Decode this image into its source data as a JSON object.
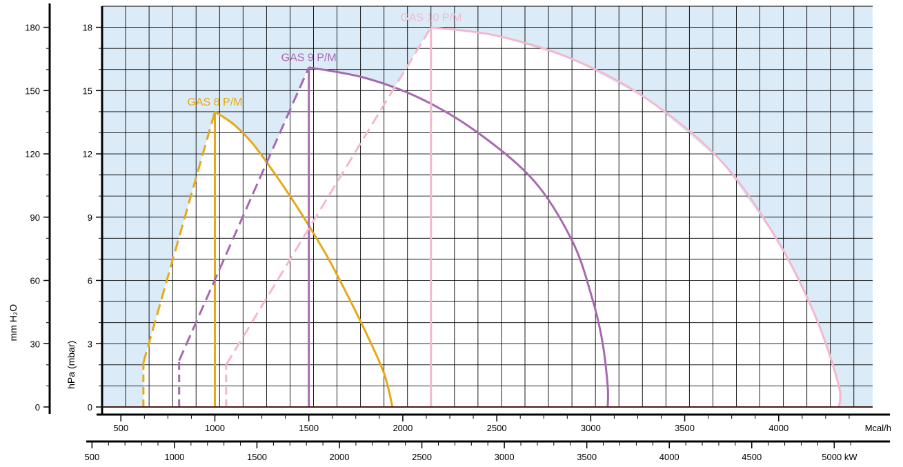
{
  "chart_data": {
    "type": "line",
    "x_axis_primary": {
      "label": "Mcal/h",
      "range": [
        400,
        4500
      ],
      "major_ticks": [
        500,
        1000,
        1500,
        2000,
        2500,
        3000,
        3500,
        4000
      ],
      "tick_labels": [
        "500",
        "1000",
        "1500",
        "2000",
        "2500",
        "3000",
        "3500",
        "4000"
      ]
    },
    "x_axis_secondary": {
      "label": "kW",
      "range": [
        465,
        5233
      ],
      "major_ticks": [
        500,
        1000,
        1500,
        2000,
        2500,
        3000,
        3500,
        4000,
        4500,
        5000
      ],
      "tick_labels": [
        "500",
        "1000",
        "1500",
        "2000",
        "2500",
        "3000",
        "3500",
        "4000",
        "4500",
        "5000 kW"
      ]
    },
    "y_axis_primary": {
      "label": "hPa (mbar)",
      "range": [
        0,
        19
      ],
      "major_ticks": [
        0,
        3,
        6,
        9,
        12,
        15,
        18
      ],
      "tick_labels": [
        "0",
        "3",
        "6",
        "9",
        "12",
        "15",
        "18"
      ]
    },
    "y_axis_secondary": {
      "label": "mm H₂O",
      "range": [
        0,
        190
      ],
      "major_ticks": [
        0,
        30,
        60,
        90,
        120,
        150,
        180
      ],
      "tick_labels": [
        "0",
        "30",
        "60",
        "90",
        "120",
        "150",
        "180"
      ]
    },
    "grid": true,
    "background_shading": "#dcebf8",
    "series": [
      {
        "name": "GAS 8 P/M",
        "color": "#e6a817",
        "min_output_line": [
          [
            620,
            0
          ],
          [
            620,
            2.1
          ]
        ],
        "startup_line": [
          [
            620,
            2.1
          ],
          [
            1000,
            14
          ]
        ],
        "max_output_vertical": [
          [
            1000,
            0
          ],
          [
            1000,
            14
          ]
        ],
        "operating_curve": [
          [
            1000,
            14
          ],
          [
            1100,
            13.4
          ],
          [
            1200,
            12.5
          ],
          [
            1300,
            11.3
          ],
          [
            1400,
            10
          ],
          [
            1500,
            8.6
          ],
          [
            1600,
            7.1
          ],
          [
            1700,
            5.4
          ],
          [
            1800,
            3.6
          ],
          [
            1900,
            1.6
          ],
          [
            1945,
            0
          ]
        ]
      },
      {
        "name": "GAS 9 P/M",
        "color": "#a868b0",
        "min_output_line": [
          [
            810,
            0
          ],
          [
            810,
            2.2
          ]
        ],
        "startup_line": [
          [
            810,
            2.2
          ],
          [
            1500,
            16.1
          ]
        ],
        "max_output_vertical": [
          [
            1500,
            0
          ],
          [
            1500,
            16.1
          ]
        ],
        "operating_curve": [
          [
            1500,
            16.1
          ],
          [
            1800,
            15.6
          ],
          [
            2100,
            14.6
          ],
          [
            2400,
            13
          ],
          [
            2700,
            10.7
          ],
          [
            2900,
            7.9
          ],
          [
            3000,
            5.4
          ],
          [
            3060,
            3.2
          ],
          [
            3090,
            1
          ],
          [
            3090,
            0
          ]
        ]
      },
      {
        "name": "GAS 10 P/M",
        "color": "#f4b8cc",
        "min_output_line": [
          [
            1060,
            0
          ],
          [
            1060,
            2
          ]
        ],
        "startup_line": [
          [
            1060,
            2
          ],
          [
            2150,
            18
          ]
        ],
        "max_output_vertical": [
          [
            2150,
            0
          ],
          [
            2150,
            18
          ]
        ],
        "operating_curve": [
          [
            2150,
            18
          ],
          [
            2500,
            17.6
          ],
          [
            2900,
            16.5
          ],
          [
            3300,
            14.6
          ],
          [
            3700,
            11.6
          ],
          [
            4000,
            7.8
          ],
          [
            4200,
            4.2
          ],
          [
            4320,
            1
          ],
          [
            4320,
            0
          ]
        ]
      }
    ]
  }
}
